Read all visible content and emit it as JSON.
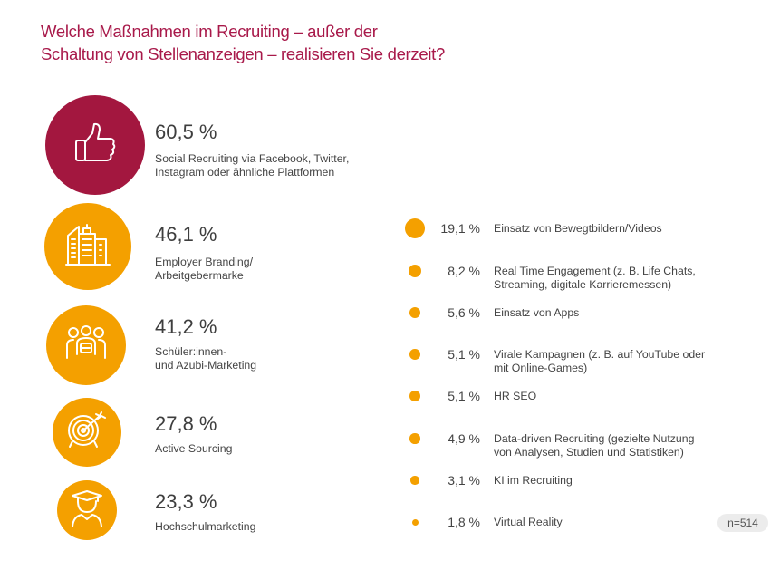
{
  "chart_data": {
    "type": "bubble-list",
    "title": "Welche Maßnahmen im Recruiting – außer der Schaltung von Stellenanzeigen – realisieren Sie derzeit?",
    "title_lines": [
      "Welche Maßnahmen im Recruiting – außer der",
      "Schaltung von Stellenanzeigen – realisieren Sie derzeit?"
    ],
    "unit": "%",
    "top_items": [
      {
        "value": 60.5,
        "value_label": "60,5 %",
        "label_lines": [
          "Social Recruiting via Facebook, Twitter,",
          "Instagram oder ähnliche Plattformen"
        ],
        "icon": "thumbs-up-icon",
        "color": "#A3173F"
      },
      {
        "value": 46.1,
        "value_label": "46,1 %",
        "label_lines": [
          "Employer Branding/",
          "Arbeitgebermarke"
        ],
        "icon": "buildings-icon",
        "color": "#F4A000"
      },
      {
        "value": 41.2,
        "value_label": "41,2 %",
        "label_lines": [
          "Schüler:innen-",
          "und Azubi-Marketing"
        ],
        "icon": "group-icon",
        "color": "#F4A000"
      },
      {
        "value": 27.8,
        "value_label": "27,8 %",
        "label_lines": [
          "Active Sourcing"
        ],
        "icon": "target-icon",
        "color": "#F4A000"
      },
      {
        "value": 23.3,
        "value_label": "23,3 %",
        "label_lines": [
          "Hochschulmarketing"
        ],
        "icon": "graduate-icon",
        "color": "#F4A000"
      }
    ],
    "other_items": [
      {
        "value": 19.1,
        "value_label": "19,1 %",
        "label_lines": [
          "Einsatz von Bewegtbildern/Videos"
        ]
      },
      {
        "value": 8.2,
        "value_label": "8,2 %",
        "label_lines": [
          "Real Time Engagement (z. B. Life Chats,",
          "Streaming, digitale Karrieremessen)"
        ]
      },
      {
        "value": 5.6,
        "value_label": "5,6 %",
        "label_lines": [
          "Einsatz von Apps"
        ]
      },
      {
        "value": 5.1,
        "value_label": "5,1 %",
        "label_lines": [
          "Virale Kampagnen (z. B. auf YouTube oder",
          "mit Online-Games)"
        ]
      },
      {
        "value": 5.1,
        "value_label": "5,1 %",
        "label_lines": [
          "HR SEO"
        ]
      },
      {
        "value": 4.9,
        "value_label": "4,9 %",
        "label_lines": [
          "Data-driven Recruiting (gezielte Nutzung",
          "von Analysen, Studien und Statistiken)"
        ]
      },
      {
        "value": 3.1,
        "value_label": "3,1 %",
        "label_lines": [
          "KI im Recruiting"
        ]
      },
      {
        "value": 1.8,
        "value_label": "1,8 %",
        "label_lines": [
          "Virtual Reality"
        ]
      }
    ],
    "dot_color": "#F4A000",
    "sample_size": "n=514"
  }
}
